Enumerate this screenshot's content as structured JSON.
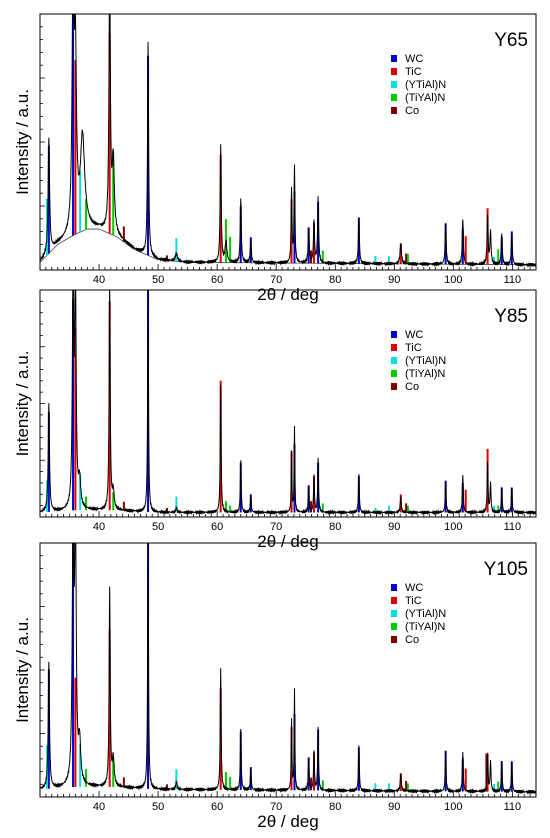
{
  "chart_data": [
    {
      "type": "line",
      "title": "Y65",
      "xlabel": "2θ / deg",
      "ylabel": "Intensity / a.u.",
      "xlim": [
        30,
        114
      ],
      "ylim": [
        0,
        100
      ],
      "xticks": [
        40,
        50,
        60,
        70,
        80,
        90,
        100,
        110
      ],
      "grid": false,
      "legend_position": "top-right",
      "legend": [
        {
          "name": "WC",
          "color": "#0000cc"
        },
        {
          "name": "TiC",
          "color": "#e00000"
        },
        {
          "name": "(YTiAl)N",
          "color": "#00e0e0"
        },
        {
          "name": "(TiYAl)N",
          "color": "#00cc00"
        },
        {
          "name": "Co",
          "color": "#800000"
        }
      ],
      "reference_peaks": {
        "WC": [
          [
            31.5,
            42
          ],
          [
            35.6,
            94
          ],
          [
            48.3,
            78
          ],
          [
            64.0,
            22
          ],
          [
            65.7,
            10
          ],
          [
            73.1,
            28
          ],
          [
            75.5,
            14
          ],
          [
            77.1,
            24
          ],
          [
            84.0,
            18
          ],
          [
            98.7,
            16
          ],
          [
            101.6,
            14
          ],
          [
            108.2,
            11
          ],
          [
            109.9,
            13
          ]
        ],
        "TiC": [
          [
            36.0,
            68
          ],
          [
            41.8,
            78
          ],
          [
            60.6,
            42
          ],
          [
            72.6,
            25
          ],
          [
            76.4,
            16
          ],
          [
            91.1,
            8
          ],
          [
            102.1,
            11
          ],
          [
            105.8,
            22
          ]
        ],
        "(YTiAl)N": [
          [
            31.2,
            22
          ],
          [
            36.8,
            24
          ],
          [
            53.1,
            9
          ],
          [
            86.8,
            3
          ],
          [
            89.1,
            3
          ],
          [
            106.9,
            3
          ]
        ],
        "(TiYAl)N": [
          [
            37.8,
            12
          ],
          [
            42.4,
            33
          ],
          [
            61.5,
            17
          ],
          [
            62.2,
            10
          ],
          [
            77.9,
            5
          ],
          [
            92.3,
            4
          ],
          [
            107.6,
            6
          ]
        ],
        "Co": [
          [
            44.2,
            6
          ],
          [
            51.5,
            2
          ],
          [
            75.9,
            5
          ],
          [
            92.0,
            4
          ]
        ]
      },
      "measured_pattern": {
        "baseline": [
          [
            30,
            3
          ],
          [
            33,
            10
          ],
          [
            36,
            14
          ],
          [
            38,
            16
          ],
          [
            40,
            16
          ],
          [
            43,
            13
          ],
          [
            46,
            8
          ],
          [
            50,
            4
          ],
          [
            55,
            3
          ],
          [
            114,
            2
          ]
        ],
        "peaks": [
          [
            31.5,
            45,
            0.4
          ],
          [
            35.6,
            100,
            0.5
          ],
          [
            36.0,
            65,
            0.6
          ],
          [
            37.2,
            36,
            1.2
          ],
          [
            41.8,
            100,
            0.4
          ],
          [
            42.4,
            28,
            0.6
          ],
          [
            48.3,
            83,
            0.3
          ],
          [
            53.1,
            3,
            0.6
          ],
          [
            60.6,
            46,
            0.3
          ],
          [
            61.5,
            8,
            0.5
          ],
          [
            64.0,
            25,
            0.3
          ],
          [
            65.7,
            9,
            0.3
          ],
          [
            72.6,
            29,
            0.25
          ],
          [
            73.1,
            38,
            0.25
          ],
          [
            75.5,
            14,
            0.3
          ],
          [
            76.4,
            16,
            0.3
          ],
          [
            77.1,
            25,
            0.3
          ],
          [
            84.0,
            18,
            0.3
          ],
          [
            91.1,
            8,
            0.4
          ],
          [
            98.7,
            16,
            0.3
          ],
          [
            101.6,
            18,
            0.3
          ],
          [
            105.8,
            19,
            0.3
          ],
          [
            106.3,
            13,
            0.3
          ],
          [
            108.2,
            12,
            0.3
          ],
          [
            109.9,
            12,
            0.3
          ]
        ]
      }
    },
    {
      "type": "line",
      "title": "Y85",
      "xlabel": "2θ / deg",
      "ylabel": "Intensity / a.u.",
      "xlim": [
        30,
        114
      ],
      "ylim": [
        0,
        100
      ],
      "xticks": [
        40,
        50,
        60,
        70,
        80,
        90,
        100,
        110
      ],
      "grid": false,
      "legend_position": "top-right",
      "legend": [
        {
          "name": "WC",
          "color": "#0000cc"
        },
        {
          "name": "TiC",
          "color": "#e00000"
        },
        {
          "name": "(YTiAl)N",
          "color": "#00e0e0"
        },
        {
          "name": "(TiYAl)N",
          "color": "#00cc00"
        },
        {
          "name": "Co",
          "color": "#800000"
        }
      ],
      "reference_peaks": {
        "WC": [
          [
            31.5,
            44
          ],
          [
            35.6,
            93
          ],
          [
            48.3,
            98
          ],
          [
            64.0,
            22
          ],
          [
            65.7,
            8
          ],
          [
            73.1,
            30
          ],
          [
            75.5,
            12
          ],
          [
            77.1,
            22
          ],
          [
            84.0,
            16
          ],
          [
            98.7,
            14
          ],
          [
            101.6,
            13
          ],
          [
            108.2,
            11
          ],
          [
            109.9,
            11
          ]
        ],
        "TiC": [
          [
            36.0,
            80
          ],
          [
            41.8,
            92
          ],
          [
            60.6,
            58
          ],
          [
            72.6,
            27
          ],
          [
            76.4,
            16
          ],
          [
            91.1,
            8
          ],
          [
            102.1,
            10
          ],
          [
            105.8,
            28
          ]
        ],
        "(YTiAl)N": [
          [
            31.2,
            14
          ],
          [
            36.8,
            16
          ],
          [
            53.1,
            7
          ],
          [
            86.8,
            2
          ],
          [
            89.1,
            3
          ],
          [
            106.9,
            3
          ]
        ],
        "(TiYAl)N": [
          [
            37.8,
            6
          ],
          [
            42.4,
            8
          ],
          [
            61.5,
            5
          ],
          [
            62.2,
            3
          ],
          [
            77.9,
            4
          ],
          [
            92.3,
            3
          ],
          [
            107.6,
            3
          ]
        ],
        "Co": [
          [
            44.2,
            4
          ],
          [
            51.5,
            2
          ],
          [
            75.9,
            5
          ],
          [
            92.0,
            4
          ]
        ]
      },
      "measured_pattern": {
        "baseline": [
          [
            30,
            2
          ],
          [
            36,
            3
          ],
          [
            42,
            3
          ],
          [
            50,
            2
          ],
          [
            114,
            2
          ]
        ],
        "peaks": [
          [
            31.5,
            48,
            0.35
          ],
          [
            35.6,
            100,
            0.4
          ],
          [
            36.0,
            100,
            0.4
          ],
          [
            36.7,
            12,
            0.6
          ],
          [
            41.8,
            100,
            0.3
          ],
          [
            42.4,
            8,
            0.5
          ],
          [
            48.3,
            98,
            0.25
          ],
          [
            53.1,
            2,
            0.4
          ],
          [
            60.6,
            56,
            0.25
          ],
          [
            64.0,
            23,
            0.25
          ],
          [
            65.7,
            8,
            0.25
          ],
          [
            72.6,
            27,
            0.2
          ],
          [
            73.1,
            38,
            0.2
          ],
          [
            75.5,
            12,
            0.25
          ],
          [
            76.4,
            16,
            0.25
          ],
          [
            77.1,
            23,
            0.25
          ],
          [
            84.0,
            17,
            0.25
          ],
          [
            91.1,
            7,
            0.3
          ],
          [
            98.7,
            14,
            0.25
          ],
          [
            101.6,
            17,
            0.25
          ],
          [
            105.8,
            22,
            0.25
          ],
          [
            106.3,
            13,
            0.25
          ],
          [
            108.2,
            11,
            0.25
          ],
          [
            109.9,
            11,
            0.25
          ]
        ]
      }
    },
    {
      "type": "line",
      "title": "Y105",
      "xlabel": "2θ / deg",
      "ylabel": "Intensity / a.u.",
      "xlim": [
        30,
        114
      ],
      "ylim": [
        0,
        100
      ],
      "xticks": [
        40,
        50,
        60,
        70,
        80,
        90,
        100,
        110
      ],
      "grid": false,
      "legend_position": "top-right",
      "legend": [
        {
          "name": "WC",
          "color": "#0000cc"
        },
        {
          "name": "TiC",
          "color": "#e00000"
        },
        {
          "name": "(YTiAl)N",
          "color": "#00e0e0"
        },
        {
          "name": "(TiYAl)N",
          "color": "#00cc00"
        },
        {
          "name": "Co",
          "color": "#800000"
        }
      ],
      "reference_peaks": {
        "WC": [
          [
            31.5,
            47
          ],
          [
            35.6,
            99
          ],
          [
            48.3,
            98
          ],
          [
            64.0,
            23
          ],
          [
            65.7,
            9
          ],
          [
            73.1,
            30
          ],
          [
            75.5,
            13
          ],
          [
            77.1,
            24
          ],
          [
            84.0,
            17
          ],
          [
            98.7,
            16
          ],
          [
            101.6,
            13
          ],
          [
            108.2,
            12
          ],
          [
            109.9,
            12
          ]
        ],
        "TiC": [
          [
            36.0,
            43
          ],
          [
            41.8,
            62
          ],
          [
            60.6,
            40
          ],
          [
            72.6,
            25
          ],
          [
            76.4,
            15
          ],
          [
            91.1,
            7
          ],
          [
            102.1,
            9
          ],
          [
            105.8,
            15
          ]
        ],
        "(YTiAl)N": [
          [
            31.2,
            17
          ],
          [
            36.8,
            17
          ],
          [
            53.1,
            8
          ],
          [
            86.8,
            3
          ],
          [
            89.1,
            3
          ],
          [
            106.9,
            3
          ]
        ],
        "(TiYAl)N": [
          [
            37.8,
            7
          ],
          [
            42.4,
            11
          ],
          [
            61.5,
            7
          ],
          [
            62.2,
            5
          ],
          [
            77.9,
            4
          ],
          [
            92.3,
            3
          ],
          [
            107.6,
            4
          ]
        ],
        "Co": [
          [
            44.2,
            4
          ],
          [
            51.5,
            2
          ],
          [
            75.9,
            5
          ],
          [
            92.0,
            4
          ],
          [
            105.6,
            15
          ]
        ]
      },
      "measured_pattern": {
        "baseline": [
          [
            30,
            3
          ],
          [
            36,
            4
          ],
          [
            42,
            4
          ],
          [
            50,
            3
          ],
          [
            114,
            2
          ]
        ],
        "peaks": [
          [
            31.5,
            50,
            0.35
          ],
          [
            35.6,
            100,
            0.45
          ],
          [
            36.0,
            100,
            0.45
          ],
          [
            36.7,
            16,
            0.6
          ],
          [
            41.8,
            78,
            0.3
          ],
          [
            42.4,
            11,
            0.5
          ],
          [
            48.3,
            98,
            0.25
          ],
          [
            53.1,
            3,
            0.4
          ],
          [
            60.6,
            48,
            0.25
          ],
          [
            64.0,
            24,
            0.25
          ],
          [
            65.7,
            9,
            0.25
          ],
          [
            72.6,
            28,
            0.2
          ],
          [
            73.1,
            40,
            0.2
          ],
          [
            75.5,
            13,
            0.25
          ],
          [
            76.4,
            15,
            0.25
          ],
          [
            77.1,
            24,
            0.25
          ],
          [
            84.0,
            18,
            0.25
          ],
          [
            91.1,
            7,
            0.3
          ],
          [
            98.7,
            16,
            0.25
          ],
          [
            101.6,
            16,
            0.25
          ],
          [
            105.8,
            15,
            0.25
          ],
          [
            106.3,
            12,
            0.25
          ],
          [
            108.2,
            12,
            0.25
          ],
          [
            109.9,
            12,
            0.25
          ]
        ]
      }
    }
  ]
}
